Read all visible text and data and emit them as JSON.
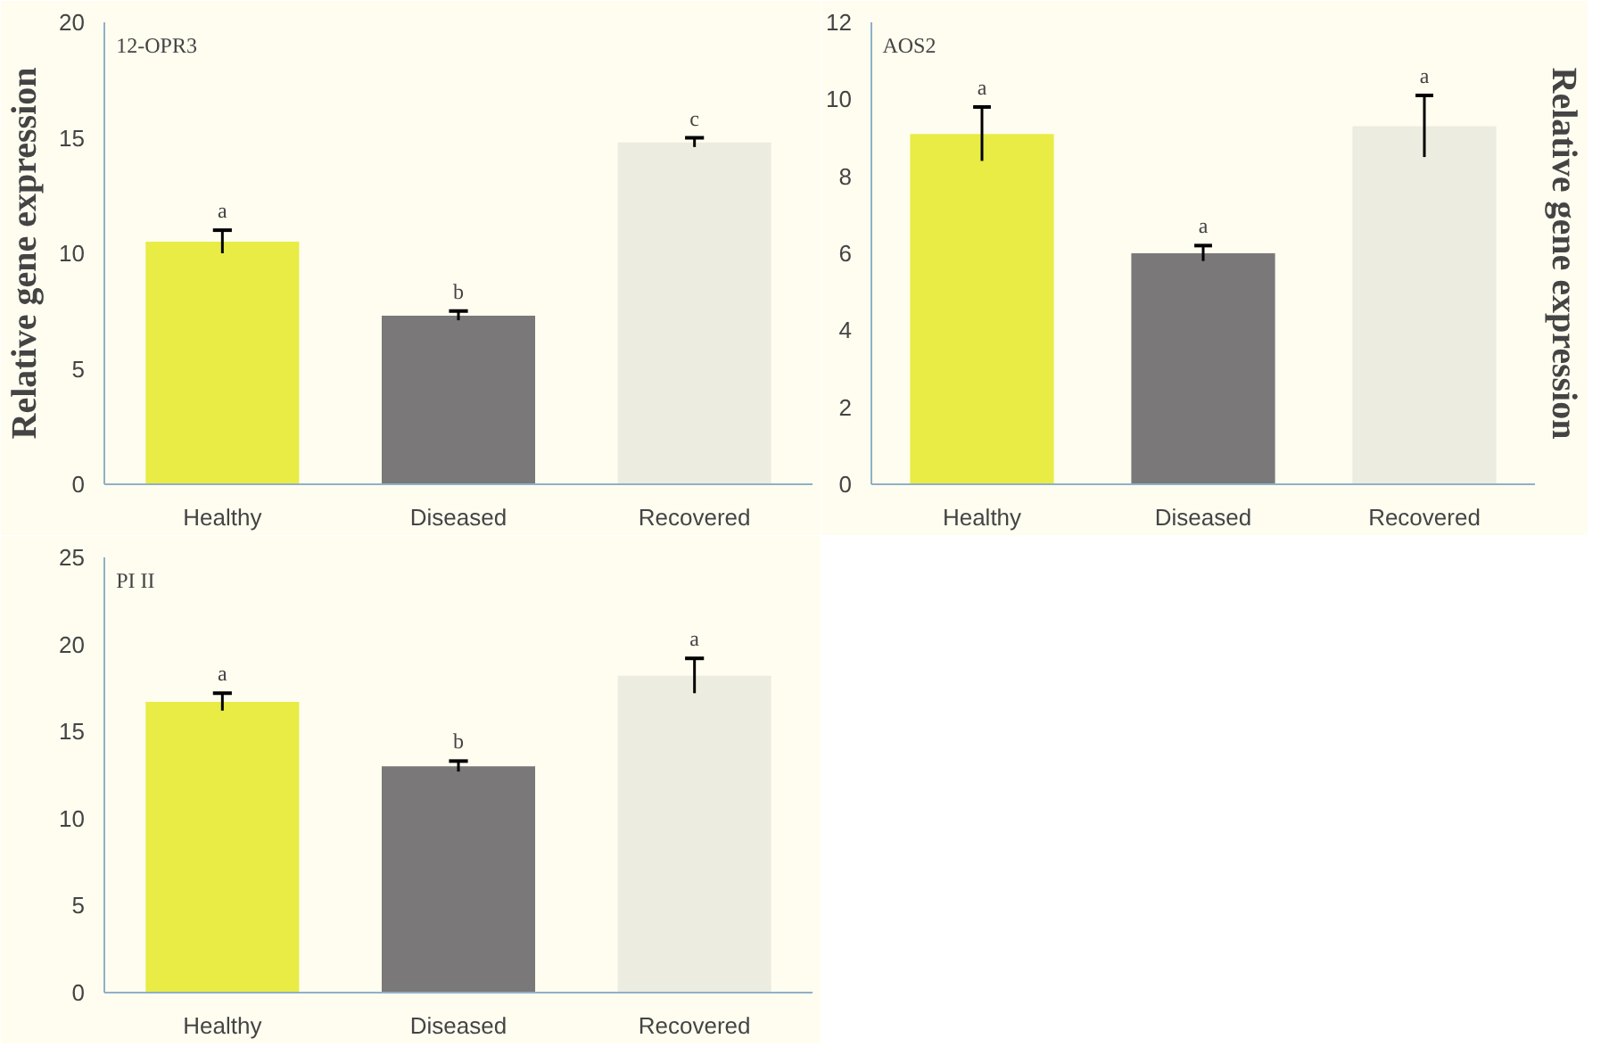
{
  "chart_data": [
    {
      "type": "bar",
      "title": "12-OPR3",
      "ylabel": "Relative gene expression",
      "categories": [
        "Healthy",
        "Diseased",
        "Recovered"
      ],
      "values": [
        10.5,
        7.3,
        14.8
      ],
      "errors": [
        0.5,
        0.2,
        0.2
      ],
      "colors": [
        "#e8ec44",
        "#7a7878",
        "#ecece0"
      ],
      "ylim": [
        0,
        20
      ],
      "yticks": [
        0,
        5,
        10,
        15,
        20
      ],
      "grid": false,
      "annotations": [
        "a",
        "b",
        "c"
      ]
    },
    {
      "type": "bar",
      "title": "AOS2",
      "ylabel": "Relative gene expression",
      "categories": [
        "Healthy",
        "Diseased",
        "Recovered"
      ],
      "values": [
        9.1,
        6.0,
        9.3
      ],
      "errors": [
        0.7,
        0.2,
        0.8
      ],
      "colors": [
        "#e8ec44",
        "#7a7878",
        "#ecece0"
      ],
      "ylim": [
        0,
        12
      ],
      "yticks": [
        0,
        2,
        4,
        6,
        8,
        10,
        12
      ],
      "grid": false,
      "annotations": [
        "a",
        "a",
        "a"
      ]
    },
    {
      "type": "bar",
      "title": "PI II",
      "categories": [
        "Healthy",
        "Diseased",
        "Recovered"
      ],
      "values": [
        16.7,
        13.0,
        18.2
      ],
      "errors": [
        0.5,
        0.3,
        1.0
      ],
      "colors": [
        "#e8ec44",
        "#7a7878",
        "#ecece0"
      ],
      "ylim": [
        0,
        25
      ],
      "yticks": [
        0,
        5,
        10,
        15,
        20,
        25
      ],
      "grid": false,
      "annotations": [
        "a",
        "b",
        "a"
      ]
    }
  ]
}
